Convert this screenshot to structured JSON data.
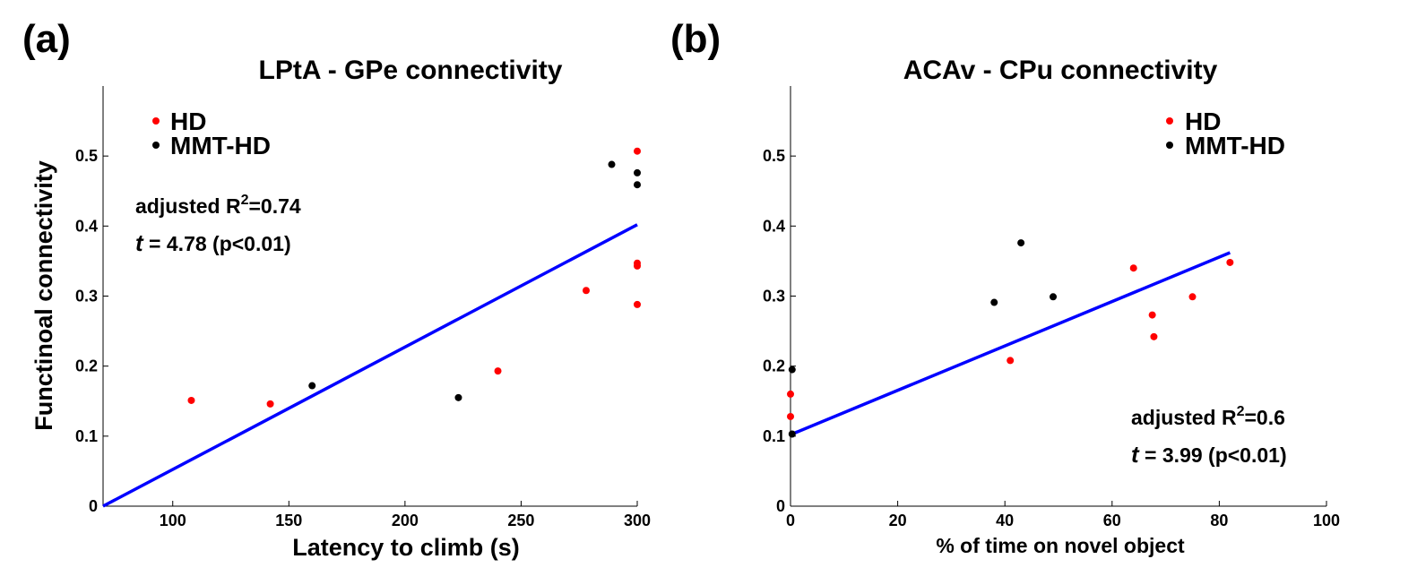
{
  "chart_data": [
    {
      "panel": "(a)",
      "type": "scatter",
      "title": "LPtA - GPe connectivity",
      "xlabel": "Latency to climb (s)",
      "ylabel": "Functinoal connectivity",
      "xlim": [
        70,
        300
      ],
      "ylim": [
        0,
        0.6
      ],
      "xticks": [
        100,
        150,
        200,
        250,
        300
      ],
      "yticks": [
        0,
        0.1,
        0.2,
        0.3,
        0.4,
        0.5
      ],
      "xtick_labels": [
        "100",
        "150",
        "200",
        "250",
        "300"
      ],
      "ytick_labels": [
        "0",
        "0.1",
        "0.2",
        "0.3",
        "0.4",
        "0.5"
      ],
      "series": [
        {
          "name": "HD",
          "color": "#ff0000",
          "points": [
            [
              108,
              0.151
            ],
            [
              142,
              0.146
            ],
            [
              240,
              0.193
            ],
            [
              278,
              0.308
            ],
            [
              300,
              0.507
            ],
            [
              300,
              0.347
            ],
            [
              300,
              0.343
            ],
            [
              300,
              0.288
            ]
          ]
        },
        {
          "name": "MMT-HD",
          "color": "#000000",
          "points": [
            [
              160,
              0.172
            ],
            [
              223,
              0.155
            ],
            [
              289,
              0.488
            ],
            [
              300,
              0.476
            ],
            [
              300,
              0.459
            ]
          ]
        }
      ],
      "fit_line": {
        "color": "#0000ff",
        "x": [
          70,
          300
        ],
        "y": [
          0.0,
          0.402
        ]
      },
      "legend": [
        "HD",
        "MMT-HD"
      ],
      "legend_position": "top-left",
      "annotation": {
        "r2_label": "adjusted R",
        "r2_sup": "2",
        "r2_value": "=0.74",
        "t_symbol": "t",
        "t_text": " = 4.78 (p<0.01)"
      }
    },
    {
      "panel": "(b)",
      "type": "scatter",
      "title": "ACAv - CPu connectivity",
      "xlabel": "% of time on novel object",
      "ylabel": "",
      "xlim": [
        0,
        100
      ],
      "ylim": [
        0,
        0.6
      ],
      "xticks": [
        0,
        20,
        40,
        60,
        80,
        100
      ],
      "yticks": [
        0,
        0.1,
        0.2,
        0.3,
        0.4,
        0.5
      ],
      "xtick_labels": [
        "0",
        "20",
        "40",
        "60",
        "80",
        "100"
      ],
      "ytick_labels": [
        "0",
        "0.1",
        "0.2",
        "0.3",
        "0.4",
        "0.5"
      ],
      "series": [
        {
          "name": "HD",
          "color": "#ff0000",
          "points": [
            [
              0,
              0.16
            ],
            [
              0,
              0.128
            ],
            [
              41,
              0.208
            ],
            [
              64,
              0.34
            ],
            [
              67.5,
              0.273
            ],
            [
              67.8,
              0.242
            ],
            [
              75,
              0.299
            ],
            [
              82,
              0.348
            ]
          ]
        },
        {
          "name": "MMT-HD",
          "color": "#000000",
          "points": [
            [
              0.3,
              0.195
            ],
            [
              0.3,
              0.103
            ],
            [
              38,
              0.291
            ],
            [
              43,
              0.376
            ],
            [
              49,
              0.299
            ]
          ]
        }
      ],
      "fit_line": {
        "color": "#0000ff",
        "x": [
          0,
          82
        ],
        "y": [
          0.102,
          0.362
        ]
      },
      "legend": [
        "HD",
        "MMT-HD"
      ],
      "legend_position": "top-right",
      "annotation": {
        "r2_label": "adjusted R",
        "r2_sup": "2",
        "r2_value": "=0.6",
        "t_symbol": "t",
        "t_text": " = 3.99 (p<0.01)"
      }
    }
  ]
}
